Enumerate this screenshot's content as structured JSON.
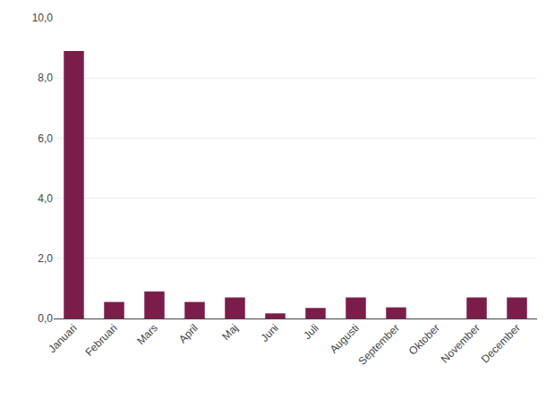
{
  "chart_data": {
    "type": "bar",
    "categories": [
      "Januari",
      "Februari",
      "Mars",
      "April",
      "Maj",
      "Juni",
      "Juli",
      "Augusti",
      "September",
      "Oktober",
      "November",
      "December"
    ],
    "values": [
      8.9,
      0.55,
      0.9,
      0.55,
      0.7,
      0.17,
      0.35,
      0.7,
      0.37,
      0.0,
      0.7,
      0.7
    ],
    "color": "#7b1d4a",
    "ylim": [
      0,
      10.0
    ],
    "yticks": [
      {
        "value": 0.0,
        "label": "0,0"
      },
      {
        "value": 2.0,
        "label": "2,0"
      },
      {
        "value": 4.0,
        "label": "4,0"
      },
      {
        "value": 6.0,
        "label": "6,0"
      },
      {
        "value": 8.0,
        "label": "8,0"
      },
      {
        "value": 10.0,
        "label": "10,0"
      }
    ],
    "grid": true
  }
}
